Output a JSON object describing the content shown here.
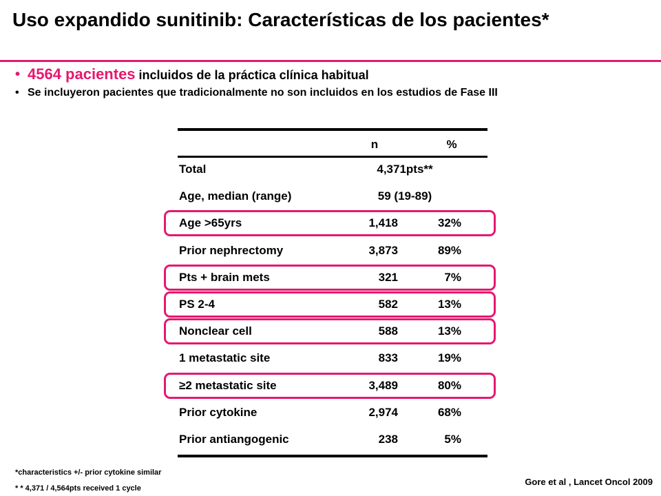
{
  "colors": {
    "accent": "#e6176f"
  },
  "title": "Uso expandido sunitinib: Características de los pacientes*",
  "bullets": [
    {
      "highlight": "4564 pacientes",
      "rest": " incluidos de la práctica clínica habitual"
    },
    {
      "text": "Se incluyeron pacientes que tradicionalmente no son incluidos en los estudios de Fase III"
    }
  ],
  "table": {
    "headers": [
      "n",
      "%"
    ],
    "rows": [
      {
        "label": "Total",
        "value": "4,371pts**",
        "highlighted": false
      },
      {
        "label": "Age, median (range)",
        "value": "59 (19-89)",
        "highlighted": false
      },
      {
        "label": "Age >65yrs",
        "n": "1,418",
        "pct": "32%",
        "highlighted": true
      },
      {
        "label": "Prior nephrectomy",
        "n": "3,873",
        "pct": "89%",
        "highlighted": false
      },
      {
        "label": "Pts + brain mets",
        "n": "321",
        "pct": "7%",
        "highlighted": true
      },
      {
        "label": "PS 2-4",
        "n": "582",
        "pct": "13%",
        "highlighted": true
      },
      {
        "label": "Nonclear cell",
        "n": "588",
        "pct": "13%",
        "highlighted": true
      },
      {
        "label": "1 metastatic site",
        "n": "833",
        "pct": "19%",
        "highlighted": false
      },
      {
        "label": "≥2 metastatic site",
        "n": "3,489",
        "pct": "80%",
        "highlighted": true
      },
      {
        "label": "Prior cytokine",
        "n": "2,974",
        "pct": "68%",
        "highlighted": false
      },
      {
        "label": "Prior antiangogenic",
        "n": "238",
        "pct": "5%",
        "highlighted": false
      }
    ]
  },
  "footnotes": [
    "*characteristics  +/- prior cytokine similar",
    "* * 4,371 / 4,564pts received 1 cycle"
  ],
  "citation": "Gore et al , Lancet Oncol 2009"
}
